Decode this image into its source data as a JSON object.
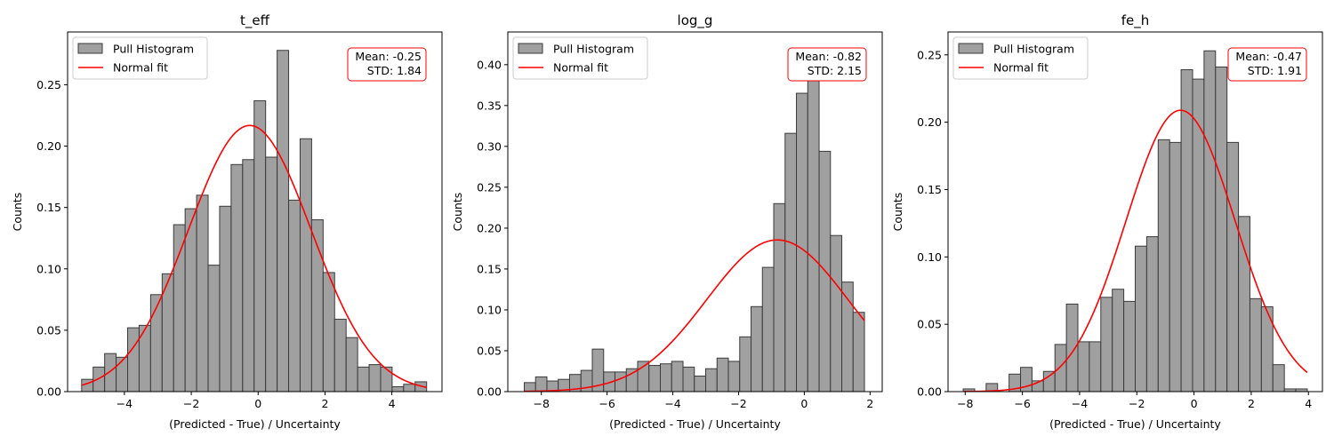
{
  "chart_data": [
    {
      "type": "bar",
      "title": "t_eff",
      "xlabel": "(Predicted - True) / Uncertainty",
      "ylabel": "Counts",
      "xlim": [
        -5.7,
        5.5
      ],
      "ylim": [
        0,
        0.293
      ],
      "xticks": [
        -4,
        -2,
        0,
        2,
        4
      ],
      "yticks": [
        0,
        0.05,
        0.1,
        0.15,
        0.2,
        0.25
      ],
      "bin_start": -5.28,
      "bin_width": 0.344,
      "values": [
        0.01,
        0.02,
        0.031,
        0.028,
        0.052,
        0.054,
        0.079,
        0.096,
        0.136,
        0.149,
        0.16,
        0.103,
        0.151,
        0.185,
        0.189,
        0.237,
        0.191,
        0.278,
        0.156,
        0.206,
        0.14,
        0.097,
        0.059,
        0.044,
        0.02,
        0.022,
        0.02,
        0.004,
        0.006,
        0.008
      ],
      "fit": {
        "mean": -0.25,
        "std": 1.84
      },
      "legend": [
        "Pull Histogram",
        "Normal fit"
      ],
      "stats": {
        "mean_label": "Mean: -0.25",
        "std_label": "STD: 1.84"
      }
    },
    {
      "type": "bar",
      "title": "log_g",
      "xlabel": "(Predicted - True) / Uncertainty",
      "ylabel": "Counts",
      "xlim": [
        -9.02,
        2.37
      ],
      "ylim": [
        0,
        0.44
      ],
      "xticks": [
        -8,
        -6,
        -4,
        -2,
        0,
        2
      ],
      "yticks": [
        0,
        0.05,
        0.1,
        0.15,
        0.2,
        0.25,
        0.3,
        0.35,
        0.4
      ],
      "bin_start": -8.52,
      "bin_width": 0.345,
      "values": [
        0.011,
        0.018,
        0.013,
        0.015,
        0.021,
        0.026,
        0.052,
        0.024,
        0.024,
        0.028,
        0.037,
        0.032,
        0.034,
        0.037,
        0.03,
        0.019,
        0.028,
        0.041,
        0.037,
        0.067,
        0.104,
        0.152,
        0.23,
        0.316,
        0.365,
        0.4,
        0.294,
        0.191,
        0.134,
        0.097
      ],
      "fit": {
        "mean": -0.82,
        "std": 2.15
      },
      "legend": [
        "Pull Histogram",
        "Normal fit"
      ],
      "stats": {
        "mean_label": "Mean: -0.82",
        "std_label": "STD: 2.15"
      }
    },
    {
      "type": "bar",
      "title": "fe_h",
      "xlabel": "(Predicted - True) / Uncertainty",
      "ylabel": "Counts",
      "xlim": [
        -8.6,
        4.49
      ],
      "ylim": [
        0,
        0.267
      ],
      "xticks": [
        -8,
        -6,
        -4,
        -2,
        0,
        2,
        4
      ],
      "yticks": [
        0,
        0.05,
        0.1,
        0.15,
        0.2,
        0.25
      ],
      "bin_start": -8.07,
      "bin_width": 0.401,
      "values": [
        0.002,
        0,
        0.006,
        0,
        0.013,
        0.018,
        0.008,
        0.015,
        0.035,
        0.065,
        0.037,
        0.037,
        0.07,
        0.076,
        0.067,
        0.108,
        0.115,
        0.187,
        0.185,
        0.239,
        0.232,
        0.253,
        0.241,
        0.185,
        0.13,
        0.069,
        0.063,
        0.02,
        0.002,
        0.002
      ],
      "fit": {
        "mean": -0.47,
        "std": 1.91
      },
      "legend": [
        "Pull Histogram",
        "Normal fit"
      ],
      "stats": {
        "mean_label": "Mean: -0.47",
        "std_label": "STD: 1.91"
      }
    }
  ]
}
